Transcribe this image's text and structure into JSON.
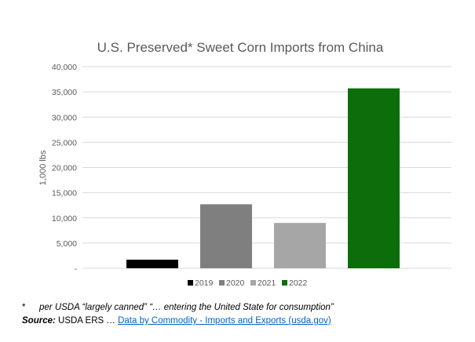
{
  "chart_data": {
    "type": "bar",
    "title": "U.S. Preserved* Sweet Corn Imports from China",
    "ylabel": "1,000 lbs",
    "xlabel": "",
    "ylim": [
      0,
      40000
    ],
    "y_ticks": [
      "-",
      "5,000",
      "10,000",
      "15,000",
      "20,000",
      "25,000",
      "30,000",
      "35,000",
      "40,000"
    ],
    "grid": true,
    "legend_position": "bottom",
    "series": [
      {
        "name": "2019",
        "value": 1700,
        "color": "#000000"
      },
      {
        "name": "2020",
        "value": 12700,
        "color": "#7f7f7f"
      },
      {
        "name": "2021",
        "value": 9000,
        "color": "#a6a6a6"
      },
      {
        "name": "2022",
        "value": 35700,
        "color": "#0b6e0b"
      }
    ]
  },
  "footnote": {
    "marker": "*",
    "text": "per USDA “largely canned” “… entering the United State for consumption”"
  },
  "source": {
    "label": "Source:",
    "text": " USDA ERS … ",
    "link_text": "Data by Commodity - Imports and Exports (usda.gov)"
  }
}
